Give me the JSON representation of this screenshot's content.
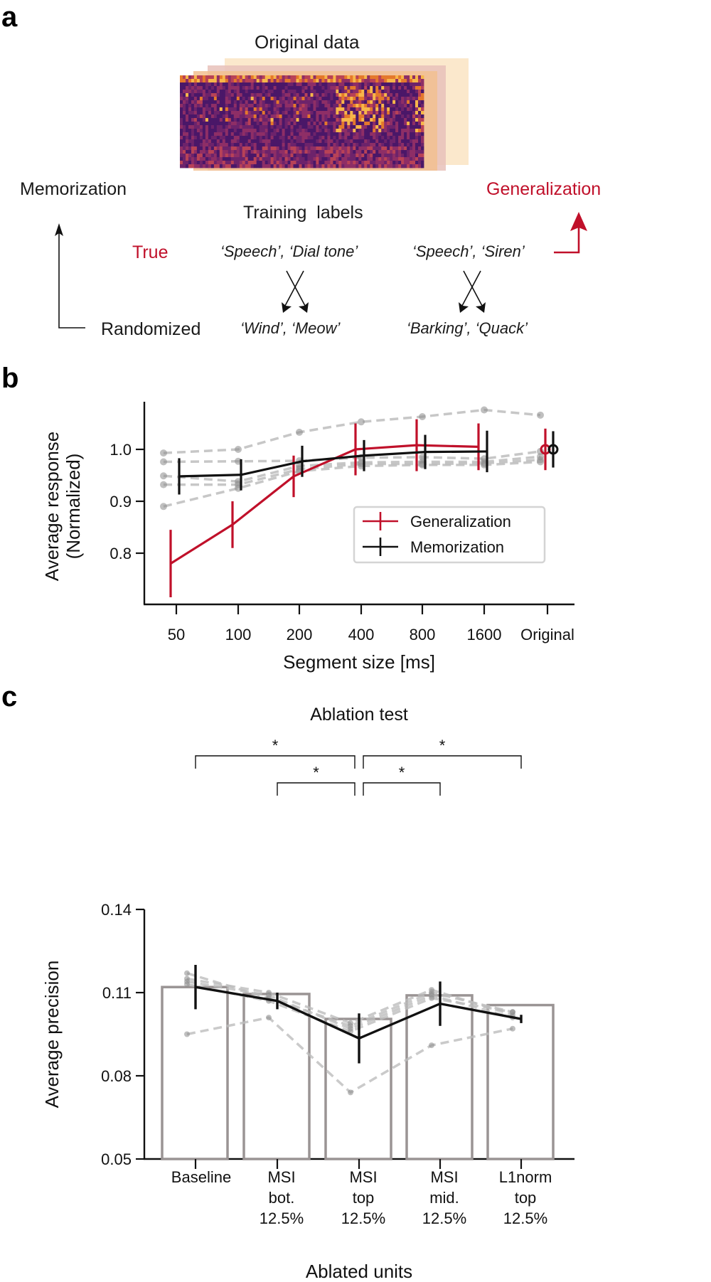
{
  "colors": {
    "accent_red": "#c0102a",
    "black": "#111111",
    "grey_line": "#bdbdbd",
    "grey_dot": "#8a8a8a",
    "bar_edge": "#9a9494"
  },
  "panel_a": {
    "letter": "a",
    "original_data_label": "Original data",
    "memorization_label": "Memorization",
    "generalization_label": "Generalization",
    "training_labels_title": "Training  labels",
    "true_label": "True",
    "randomized_label": "Randomized",
    "true_pair_1": "‘Speech’, ‘Dial tone’",
    "true_pair_2": "‘Speech’, ‘Siren’",
    "random_pair_1": "‘Wind’, ‘Meow’",
    "random_pair_2": "‘Barking’, ‘Quack’",
    "spectrogram_icon": "spectrogram-stack-image"
  },
  "panel_b": {
    "letter": "b"
  },
  "panel_c": {
    "letter": "c"
  },
  "chart_data": [
    {
      "type": "line",
      "title": "",
      "xlabel": "Segment size [ms]",
      "ylabel": "Average response\n(Normalized)",
      "ylabel_lines": [
        "Average response",
        "(Normalized)"
      ],
      "categories": [
        "50",
        "100",
        "200",
        "400",
        "800",
        "1600",
        "Original"
      ],
      "ylim": [
        0.72,
        1.1
      ],
      "yticks": [
        0.8,
        0.9,
        1.0
      ],
      "ytick_labels": [
        "0.8",
        "0.9",
        "1.0"
      ],
      "grid": false,
      "legend": {
        "placement": "center-right",
        "entries": [
          "Generalization",
          "Memorization"
        ]
      },
      "series": [
        {
          "name": "Generalization",
          "color": "#c0102a",
          "values": [
            0.78,
            0.855,
            0.948,
            1.0,
            1.008,
            1.005,
            1.0
          ],
          "errors": [
            0.065,
            0.045,
            0.04,
            0.05,
            0.05,
            0.045,
            0.04
          ],
          "connect_last": false
        },
        {
          "name": "Memorization",
          "color": "#111111",
          "values": [
            0.948,
            0.951,
            0.977,
            0.988,
            0.995,
            0.996,
            1.0
          ],
          "errors": [
            0.035,
            0.03,
            0.03,
            0.03,
            0.033,
            0.04,
            0.035
          ],
          "connect_last": false
        }
      ],
      "individual_models": [
        [
          0.993,
          1.0,
          1.033,
          1.053,
          1.063,
          1.076,
          1.066
        ],
        [
          0.976,
          0.977,
          0.978,
          0.984,
          0.985,
          0.982,
          0.996
        ],
        [
          0.949,
          0.938,
          0.968,
          0.975,
          0.976,
          0.976,
          0.986
        ],
        [
          0.932,
          0.932,
          0.962,
          0.972,
          0.972,
          0.973,
          0.98
        ],
        [
          0.89,
          0.925,
          0.958,
          0.968,
          0.97,
          0.97,
          0.976
        ]
      ]
    },
    {
      "type": "bar",
      "title": "Ablation test",
      "xlabel": "Ablated units",
      "ylabel": "Average precision",
      "categories": [
        "Baseline",
        "MSI bot. 12.5%",
        "MSI top 12.5%",
        "MSI mid. 12.5%",
        "L1norm top 12.5%"
      ],
      "category_lines": [
        [
          "Baseline"
        ],
        [
          "MSI",
          "bot.",
          "12.5%"
        ],
        [
          "MSI",
          "top",
          "12.5%"
        ],
        [
          "MSI",
          "mid.",
          "12.5%"
        ],
        [
          "L1norm",
          "top",
          "12.5%"
        ]
      ],
      "ylim": [
        0.05,
        0.14
      ],
      "yticks": [
        0.05,
        0.08,
        0.11,
        0.14
      ],
      "ytick_labels": [
        "0.05",
        "0.08",
        "0.11",
        "0.14"
      ],
      "grid": false,
      "bar_values": [
        0.112,
        0.1095,
        0.1005,
        0.109,
        0.1055
      ],
      "mean_line": {
        "values": [
          0.112,
          0.107,
          0.0935,
          0.106,
          0.1005
        ],
        "errors": [
          0.008,
          0.003,
          0.009,
          0.008,
          0.0015
        ]
      },
      "individual_models": [
        [
          0.117,
          0.108,
          0.098,
          0.11,
          0.103
        ],
        [
          0.115,
          0.11,
          0.099,
          0.111,
          0.102
        ],
        [
          0.114,
          0.109,
          0.097,
          0.109,
          0.101
        ],
        [
          0.113,
          0.107,
          0.096,
          0.108,
          0.103
        ],
        [
          0.095,
          0.101,
          0.074,
          0.091,
          0.097
        ]
      ],
      "significance": [
        {
          "from": 0,
          "to": 2,
          "label": "*",
          "level": 2
        },
        {
          "from": 2,
          "to": 4,
          "label": "*",
          "level": 2
        },
        {
          "from": 1,
          "to": 2,
          "label": "*",
          "level": 1
        },
        {
          "from": 2,
          "to": 3,
          "label": "*",
          "level": 1
        }
      ]
    }
  ]
}
